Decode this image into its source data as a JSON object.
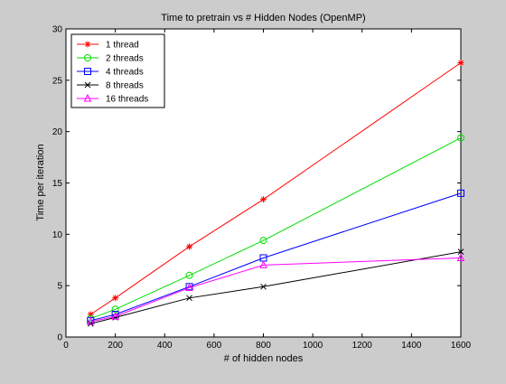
{
  "chart_data": {
    "type": "line",
    "title": "Time to pretrain vs # Hidden Nodes (OpenMP)",
    "xlabel": "# of hidden nodes",
    "ylabel": "Time per iteration",
    "xlim": [
      0,
      1600
    ],
    "ylim": [
      0,
      30
    ],
    "xticks": [
      0,
      200,
      400,
      600,
      800,
      1000,
      1200,
      1400,
      1600
    ],
    "yticks": [
      0,
      5,
      10,
      15,
      20,
      25,
      30
    ],
    "grid": false,
    "legend_position": "top-left",
    "x": [
      100,
      200,
      500,
      800,
      1600
    ],
    "series": [
      {
        "name": "1 thread",
        "color": "#ff0000",
        "marker": "star",
        "values": [
          2.2,
          3.8,
          8.8,
          13.4,
          26.7
        ]
      },
      {
        "name": "2 threads",
        "color": "#00dd00",
        "marker": "circle",
        "values": [
          1.8,
          2.7,
          6.0,
          9.4,
          19.4
        ]
      },
      {
        "name": "4 threads",
        "color": "#0000ff",
        "marker": "square",
        "values": [
          1.6,
          2.2,
          4.9,
          7.7,
          14.0
        ]
      },
      {
        "name": "8 threads",
        "color": "#000000",
        "marker": "x",
        "values": [
          1.3,
          1.9,
          3.8,
          4.9,
          8.3
        ]
      },
      {
        "name": "16 threads",
        "color": "#ff00ff",
        "marker": "triangle",
        "values": [
          1.5,
          2.0,
          4.8,
          7.0,
          7.7
        ]
      }
    ]
  }
}
